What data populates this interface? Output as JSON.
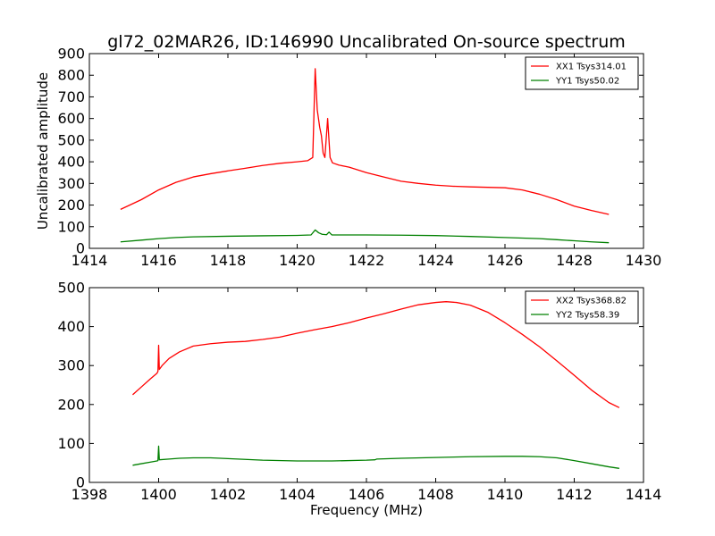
{
  "title": "gl72_02MAR26, ID:146990 Uncalibrated On-source spectrum",
  "chart_data": [
    {
      "type": "line",
      "title": "gl72_02MAR26, ID:146990 Uncalibrated On-source spectrum",
      "xlabel": "",
      "ylabel": "Uncalibrated amplitude",
      "xlim": [
        1414,
        1430
      ],
      "ylim": [
        0,
        900
      ],
      "xticks": [
        "1414",
        "1416",
        "1418",
        "1420",
        "1422",
        "1424",
        "1426",
        "1428",
        "1430"
      ],
      "yticks": [
        "0",
        "100",
        "200",
        "300",
        "400",
        "500",
        "600",
        "700",
        "800",
        "900"
      ],
      "grid": false,
      "legend_position": "top-right",
      "series": [
        {
          "name": "XX1 Tsys314.01",
          "color": "#ff0000",
          "x": [
            1414.9,
            1415.5,
            1416.0,
            1416.5,
            1417.0,
            1417.5,
            1418.0,
            1418.5,
            1419.0,
            1419.5,
            1420.0,
            1420.3,
            1420.45,
            1420.52,
            1420.58,
            1420.65,
            1420.7,
            1420.75,
            1420.8,
            1420.88,
            1420.95,
            1421.02,
            1421.2,
            1421.5,
            1422.0,
            1422.5,
            1423.0,
            1423.5,
            1424.0,
            1424.5,
            1425.0,
            1425.5,
            1426.0,
            1426.5,
            1427.0,
            1427.5,
            1428.0,
            1428.5,
            1429.0
          ],
          "y": [
            180,
            225,
            270,
            305,
            330,
            345,
            358,
            370,
            383,
            393,
            400,
            405,
            420,
            830,
            640,
            560,
            520,
            440,
            420,
            600,
            420,
            395,
            385,
            375,
            350,
            330,
            310,
            300,
            292,
            287,
            284,
            282,
            280,
            270,
            250,
            225,
            195,
            175,
            157
          ]
        },
        {
          "name": "YY1 Tsys50.02",
          "color": "#008000",
          "x": [
            1414.9,
            1415.5,
            1416.0,
            1416.5,
            1417.0,
            1418.0,
            1419.0,
            1420.0,
            1420.4,
            1420.52,
            1420.62,
            1420.72,
            1420.85,
            1420.92,
            1421.0,
            1421.5,
            1422.0,
            1423.0,
            1424.0,
            1425.0,
            1426.0,
            1427.0,
            1427.5,
            1428.0,
            1428.5,
            1429.0
          ],
          "y": [
            30,
            38,
            45,
            50,
            53,
            56,
            58,
            60,
            62,
            85,
            72,
            65,
            63,
            75,
            62,
            62,
            62,
            61,
            59,
            55,
            50,
            45,
            40,
            35,
            30,
            26
          ]
        }
      ]
    },
    {
      "type": "line",
      "title": "",
      "xlabel": "Frequency (MHz)",
      "ylabel": "",
      "xlim": [
        1398,
        1414
      ],
      "ylim": [
        0,
        500
      ],
      "xticks": [
        "1398",
        "1400",
        "1402",
        "1404",
        "1406",
        "1408",
        "1410",
        "1412",
        "1414"
      ],
      "yticks": [
        "0",
        "100",
        "200",
        "300",
        "400",
        "500"
      ],
      "grid": false,
      "legend_position": "top-right",
      "series": [
        {
          "name": "XX2 Tsys368.82",
          "color": "#ff0000",
          "x": [
            1399.25,
            1399.5,
            1399.75,
            1399.95,
            1399.98,
            1400.0,
            1400.02,
            1400.1,
            1400.3,
            1400.6,
            1401.0,
            1401.5,
            1402.0,
            1402.5,
            1403.0,
            1403.5,
            1404.0,
            1404.5,
            1405.0,
            1405.5,
            1406.0,
            1406.5,
            1407.0,
            1407.5,
            1408.0,
            1408.3,
            1408.6,
            1409.0,
            1409.5,
            1410.0,
            1410.5,
            1411.0,
            1411.5,
            1412.0,
            1412.5,
            1413.0,
            1413.3
          ],
          "y": [
            225,
            245,
            265,
            280,
            285,
            352,
            290,
            300,
            318,
            335,
            350,
            356,
            360,
            362,
            367,
            373,
            383,
            392,
            400,
            410,
            422,
            433,
            445,
            456,
            462,
            464,
            462,
            455,
            437,
            410,
            380,
            348,
            312,
            275,
            237,
            205,
            192
          ]
        },
        {
          "name": "YY2 Tsys58.39",
          "color": "#008000",
          "x": [
            1399.25,
            1399.5,
            1399.75,
            1399.95,
            1399.98,
            1400.0,
            1400.02,
            1400.3,
            1400.6,
            1401.0,
            1401.5,
            1402.0,
            1403.0,
            1404.0,
            1405.0,
            1406.0,
            1406.25,
            1406.3,
            1407.0,
            1408.0,
            1409.0,
            1410.0,
            1410.5,
            1411.0,
            1411.5,
            1412.0,
            1412.5,
            1413.0,
            1413.3
          ],
          "y": [
            44,
            48,
            52,
            55,
            56,
            93,
            58,
            60,
            62,
            63,
            63,
            61,
            57,
            55,
            55,
            57,
            58,
            60,
            62,
            64,
            66,
            67,
            67,
            66,
            63,
            56,
            48,
            40,
            36
          ]
        }
      ]
    }
  ]
}
